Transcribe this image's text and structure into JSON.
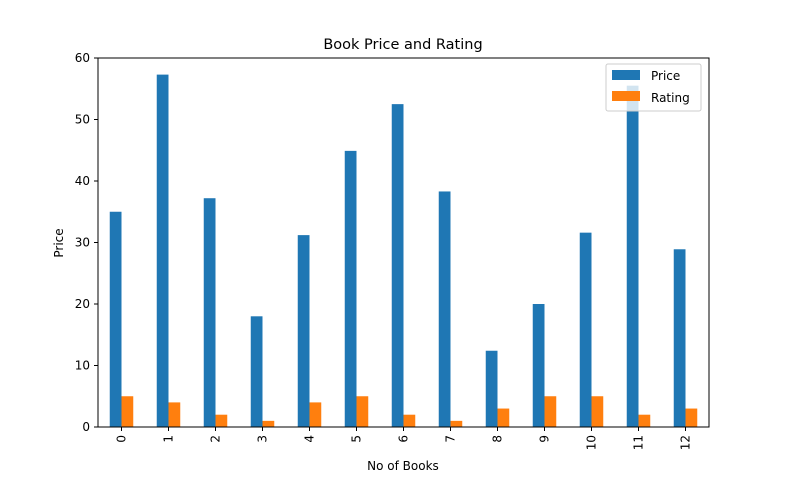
{
  "chart_data": {
    "type": "bar",
    "title": "Book Price and Rating",
    "xlabel": "No of Books",
    "ylabel": "Price",
    "categories": [
      "0",
      "1",
      "2",
      "3",
      "4",
      "5",
      "6",
      "7",
      "8",
      "9",
      "10",
      "11",
      "12"
    ],
    "series": [
      {
        "name": "Price",
        "color": "#1f77b4",
        "values": [
          35,
          57.3,
          37.2,
          18,
          31.2,
          44.9,
          52.5,
          38.3,
          12.4,
          20,
          31.6,
          55.5,
          28.9
        ]
      },
      {
        "name": "Rating",
        "color": "#ff7f0e",
        "values": [
          5,
          4,
          2,
          1,
          4,
          5,
          2,
          1,
          3,
          5,
          5,
          2,
          3
        ]
      }
    ],
    "ylim": [
      0,
      60
    ],
    "yticks": [
      0,
      10,
      20,
      30,
      40,
      50,
      60
    ],
    "grid": false,
    "legend_position": "top-right"
  }
}
